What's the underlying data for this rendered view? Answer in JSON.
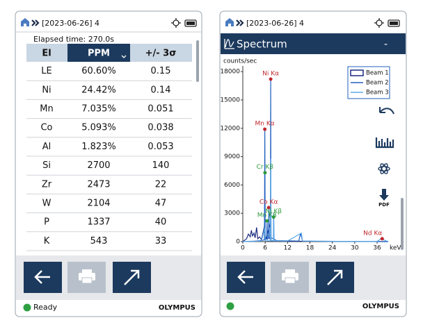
{
  "left_screen": {
    "header": {
      "title": "[2023-06-26] 4"
    },
    "elapsed": "Elapsed time: 270.0s",
    "table": {
      "columns": [
        "El",
        "PPM",
        "+/- 3σ"
      ],
      "rows": [
        [
          "LE",
          "60.60%",
          "0.15"
        ],
        [
          "Ni",
          "24.42%",
          "0.14"
        ],
        [
          "Mn",
          "7.035%",
          "0.051"
        ],
        [
          "Co",
          "5.093%",
          "0.038"
        ],
        [
          "Al",
          "1.823%",
          "0.053"
        ],
        [
          "Si",
          "2700",
          "140"
        ],
        [
          "Zr",
          "2473",
          "22"
        ],
        [
          "W",
          "2104",
          "47"
        ],
        [
          "P",
          "1337",
          "40"
        ],
        [
          "K",
          "543",
          "33"
        ]
      ]
    },
    "status": "Ready",
    "brand": "OLYMPUS"
  },
  "right_screen": {
    "header": {
      "title": "[2023-06-26] 4"
    },
    "panel_title": "Spectrum",
    "panel_control": "-",
    "pdf_label": "PDF",
    "brand": "OLYMPUS"
  },
  "spectrum": {
    "type": "line",
    "y_label": "counts/sec",
    "x_label": "keV",
    "xlim": [
      0,
      39
    ],
    "ylim": [
      0,
      18600
    ],
    "xticks": [
      0,
      6,
      12,
      18,
      24,
      30,
      36
    ],
    "yticks": [
      0,
      3000,
      6000,
      9000,
      12000,
      15000,
      18000
    ],
    "series": [
      {
        "name": "Beam 1",
        "color": "#1a2a80",
        "x": [
          0,
          1,
          1.5,
          2,
          2.3,
          2.6,
          3,
          3.3,
          3.7,
          4,
          4.5,
          5,
          5.9,
          6,
          7.48,
          7.6,
          9,
          39
        ],
        "values": [
          0,
          300,
          800,
          500,
          1200,
          600,
          900,
          400,
          1500,
          300,
          500,
          200,
          1800,
          100,
          2000,
          100,
          50,
          0
        ]
      },
      {
        "name": "Beam 2",
        "color": "#1f5fbf",
        "x": [
          0,
          3,
          5,
          5.8,
          5.9,
          6.0,
          6.4,
          6.5,
          6.6,
          6.9,
          7.0,
          7.1,
          7.4,
          7.48,
          7.55,
          8.2,
          8.26,
          8.32,
          9,
          12,
          15,
          15.5,
          16,
          20,
          25,
          30,
          36,
          39
        ],
        "values": [
          0,
          50,
          100,
          200,
          11900,
          200,
          300,
          2200,
          250,
          400,
          3600,
          300,
          400,
          17200,
          400,
          300,
          2600,
          300,
          100,
          80,
          60,
          900,
          60,
          40,
          30,
          20,
          10,
          0
        ]
      },
      {
        "name": "Beam 3",
        "color": "#5aa8e8",
        "x": [
          0,
          5,
          5.9,
          6,
          7.4,
          7.5,
          7.6,
          8.2,
          8.3,
          8.4,
          12,
          15.7,
          16,
          25,
          36,
          37,
          39
        ],
        "values": [
          0,
          50,
          1500,
          60,
          100,
          8800,
          100,
          80,
          3000,
          80,
          60,
          900,
          60,
          30,
          20,
          300,
          0
        ]
      }
    ],
    "annotations": [
      {
        "label": "Ni Kα",
        "x": 7.48,
        "y": 17200,
        "color": "#c0262d"
      },
      {
        "label": "Mn Kα",
        "x": 5.9,
        "y": 11900,
        "color": "#c0262d"
      },
      {
        "label": "Cr Kβ",
        "x": 5.95,
        "y": 7300,
        "color": "#2e9a3a"
      },
      {
        "label": "Co Kα",
        "x": 6.93,
        "y": 3600,
        "color": "#c0262d"
      },
      {
        "label": "Mn Kβ",
        "x": 6.49,
        "y": 2200,
        "color": "#2e9a3a"
      },
      {
        "label": "Ni Kβ",
        "x": 8.26,
        "y": 2600,
        "color": "#2e9a3a"
      },
      {
        "label": "Nd Kα",
        "x": 37.36,
        "y": 300,
        "color": "#c0262d"
      }
    ]
  }
}
